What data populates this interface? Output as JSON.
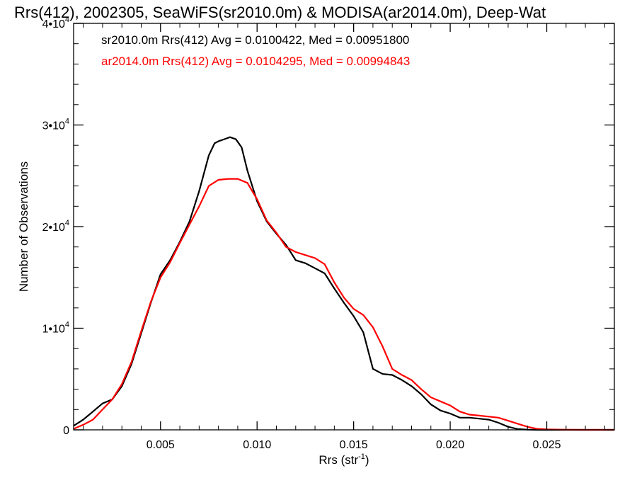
{
  "chart_data": {
    "type": "line",
    "title": "Rrs(412), 2002305, SeaWiFS(sr2010.0m) & MODISA(ar2014.0m), Deep-Wat",
    "xlabel": "Rrs (str",
    "xlabel_sup": "-1",
    "xlabel_end": ")",
    "ylabel": "Number of Observations",
    "xlim": [
      0.0005,
      0.0285
    ],
    "ylim": [
      0,
      40000
    ],
    "grid": false,
    "x_ticks": [
      0.005,
      0.01,
      0.015,
      0.02,
      0.025
    ],
    "x_tick_labels": [
      "0.005",
      "0.010",
      "0.015",
      "0.020",
      "0.025"
    ],
    "y_ticks": [
      {
        "value": 0,
        "base": "0",
        "exp": ""
      },
      {
        "value": 10000,
        "base": "1•10",
        "exp": "4"
      },
      {
        "value": 20000,
        "base": "2•10",
        "exp": "4"
      },
      {
        "value": 30000,
        "base": "3•10",
        "exp": "4"
      },
      {
        "value": 40000,
        "base": "4•10",
        "exp": "4"
      }
    ],
    "annotations": [
      {
        "text": "sr2010.0m Rrs(412) Avg = 0.0100422, Med = 0.00951800",
        "color": "#000000"
      },
      {
        "text": "ar2014.0m Rrs(412) Avg = 0.0104295, Med = 0.00994843",
        "color": "#ff0000"
      }
    ],
    "series": [
      {
        "color": "#000000",
        "x": [
          0.0005,
          0.001,
          0.0015,
          0.002,
          0.0025,
          0.003,
          0.0035,
          0.004,
          0.0045,
          0.005,
          0.0055,
          0.006,
          0.0065,
          0.007,
          0.0075,
          0.0078,
          0.008,
          0.0083,
          0.0086,
          0.0089,
          0.0092,
          0.0095,
          0.01,
          0.0105,
          0.011,
          0.0115,
          0.012,
          0.0125,
          0.013,
          0.0135,
          0.014,
          0.0145,
          0.015,
          0.0155,
          0.016,
          0.0165,
          0.017,
          0.0175,
          0.018,
          0.0185,
          0.019,
          0.0195,
          0.02,
          0.0205,
          0.021,
          0.0215,
          0.022,
          0.0225,
          0.023,
          0.0235,
          0.024,
          0.0245,
          0.025,
          0.026,
          0.027,
          0.0285
        ],
        "y": [
          400,
          1000,
          1800,
          2600,
          3000,
          4300,
          6500,
          9500,
          12500,
          15300,
          16700,
          18500,
          20500,
          23500,
          27000,
          28200,
          28400,
          28600,
          28800,
          28600,
          27800,
          25500,
          22500,
          20500,
          19300,
          18200,
          16700,
          16400,
          15900,
          15400,
          13900,
          12500,
          11200,
          9600,
          6000,
          5500,
          5400,
          4900,
          4300,
          3500,
          2500,
          1900,
          1600,
          1200,
          1200,
          1100,
          1000,
          700,
          300,
          80,
          20,
          0,
          0,
          0,
          0,
          0
        ]
      },
      {
        "color": "#ff0000",
        "x": [
          0.0005,
          0.001,
          0.0015,
          0.002,
          0.0025,
          0.003,
          0.0035,
          0.004,
          0.0045,
          0.005,
          0.0055,
          0.006,
          0.0065,
          0.007,
          0.0075,
          0.008,
          0.0085,
          0.009,
          0.0095,
          0.01,
          0.0105,
          0.011,
          0.0115,
          0.012,
          0.0125,
          0.013,
          0.0135,
          0.014,
          0.0145,
          0.015,
          0.0155,
          0.016,
          0.0165,
          0.017,
          0.0175,
          0.018,
          0.0185,
          0.019,
          0.0195,
          0.02,
          0.0205,
          0.021,
          0.0215,
          0.022,
          0.0225,
          0.023,
          0.0235,
          0.024,
          0.0245,
          0.025,
          0.026,
          0.027,
          0.0285
        ],
        "y": [
          100,
          500,
          1000,
          2000,
          3000,
          4500,
          6700,
          9700,
          12600,
          15000,
          16500,
          18400,
          20200,
          22000,
          24000,
          24600,
          24700,
          24700,
          24300,
          22700,
          20600,
          19400,
          18000,
          17500,
          17200,
          16900,
          16300,
          14500,
          13000,
          11900,
          11300,
          10100,
          8200,
          6000,
          5400,
          4900,
          4000,
          3200,
          2800,
          2400,
          1800,
          1500,
          1400,
          1300,
          1200,
          900,
          600,
          300,
          100,
          50,
          10,
          0,
          0
        ]
      }
    ]
  }
}
